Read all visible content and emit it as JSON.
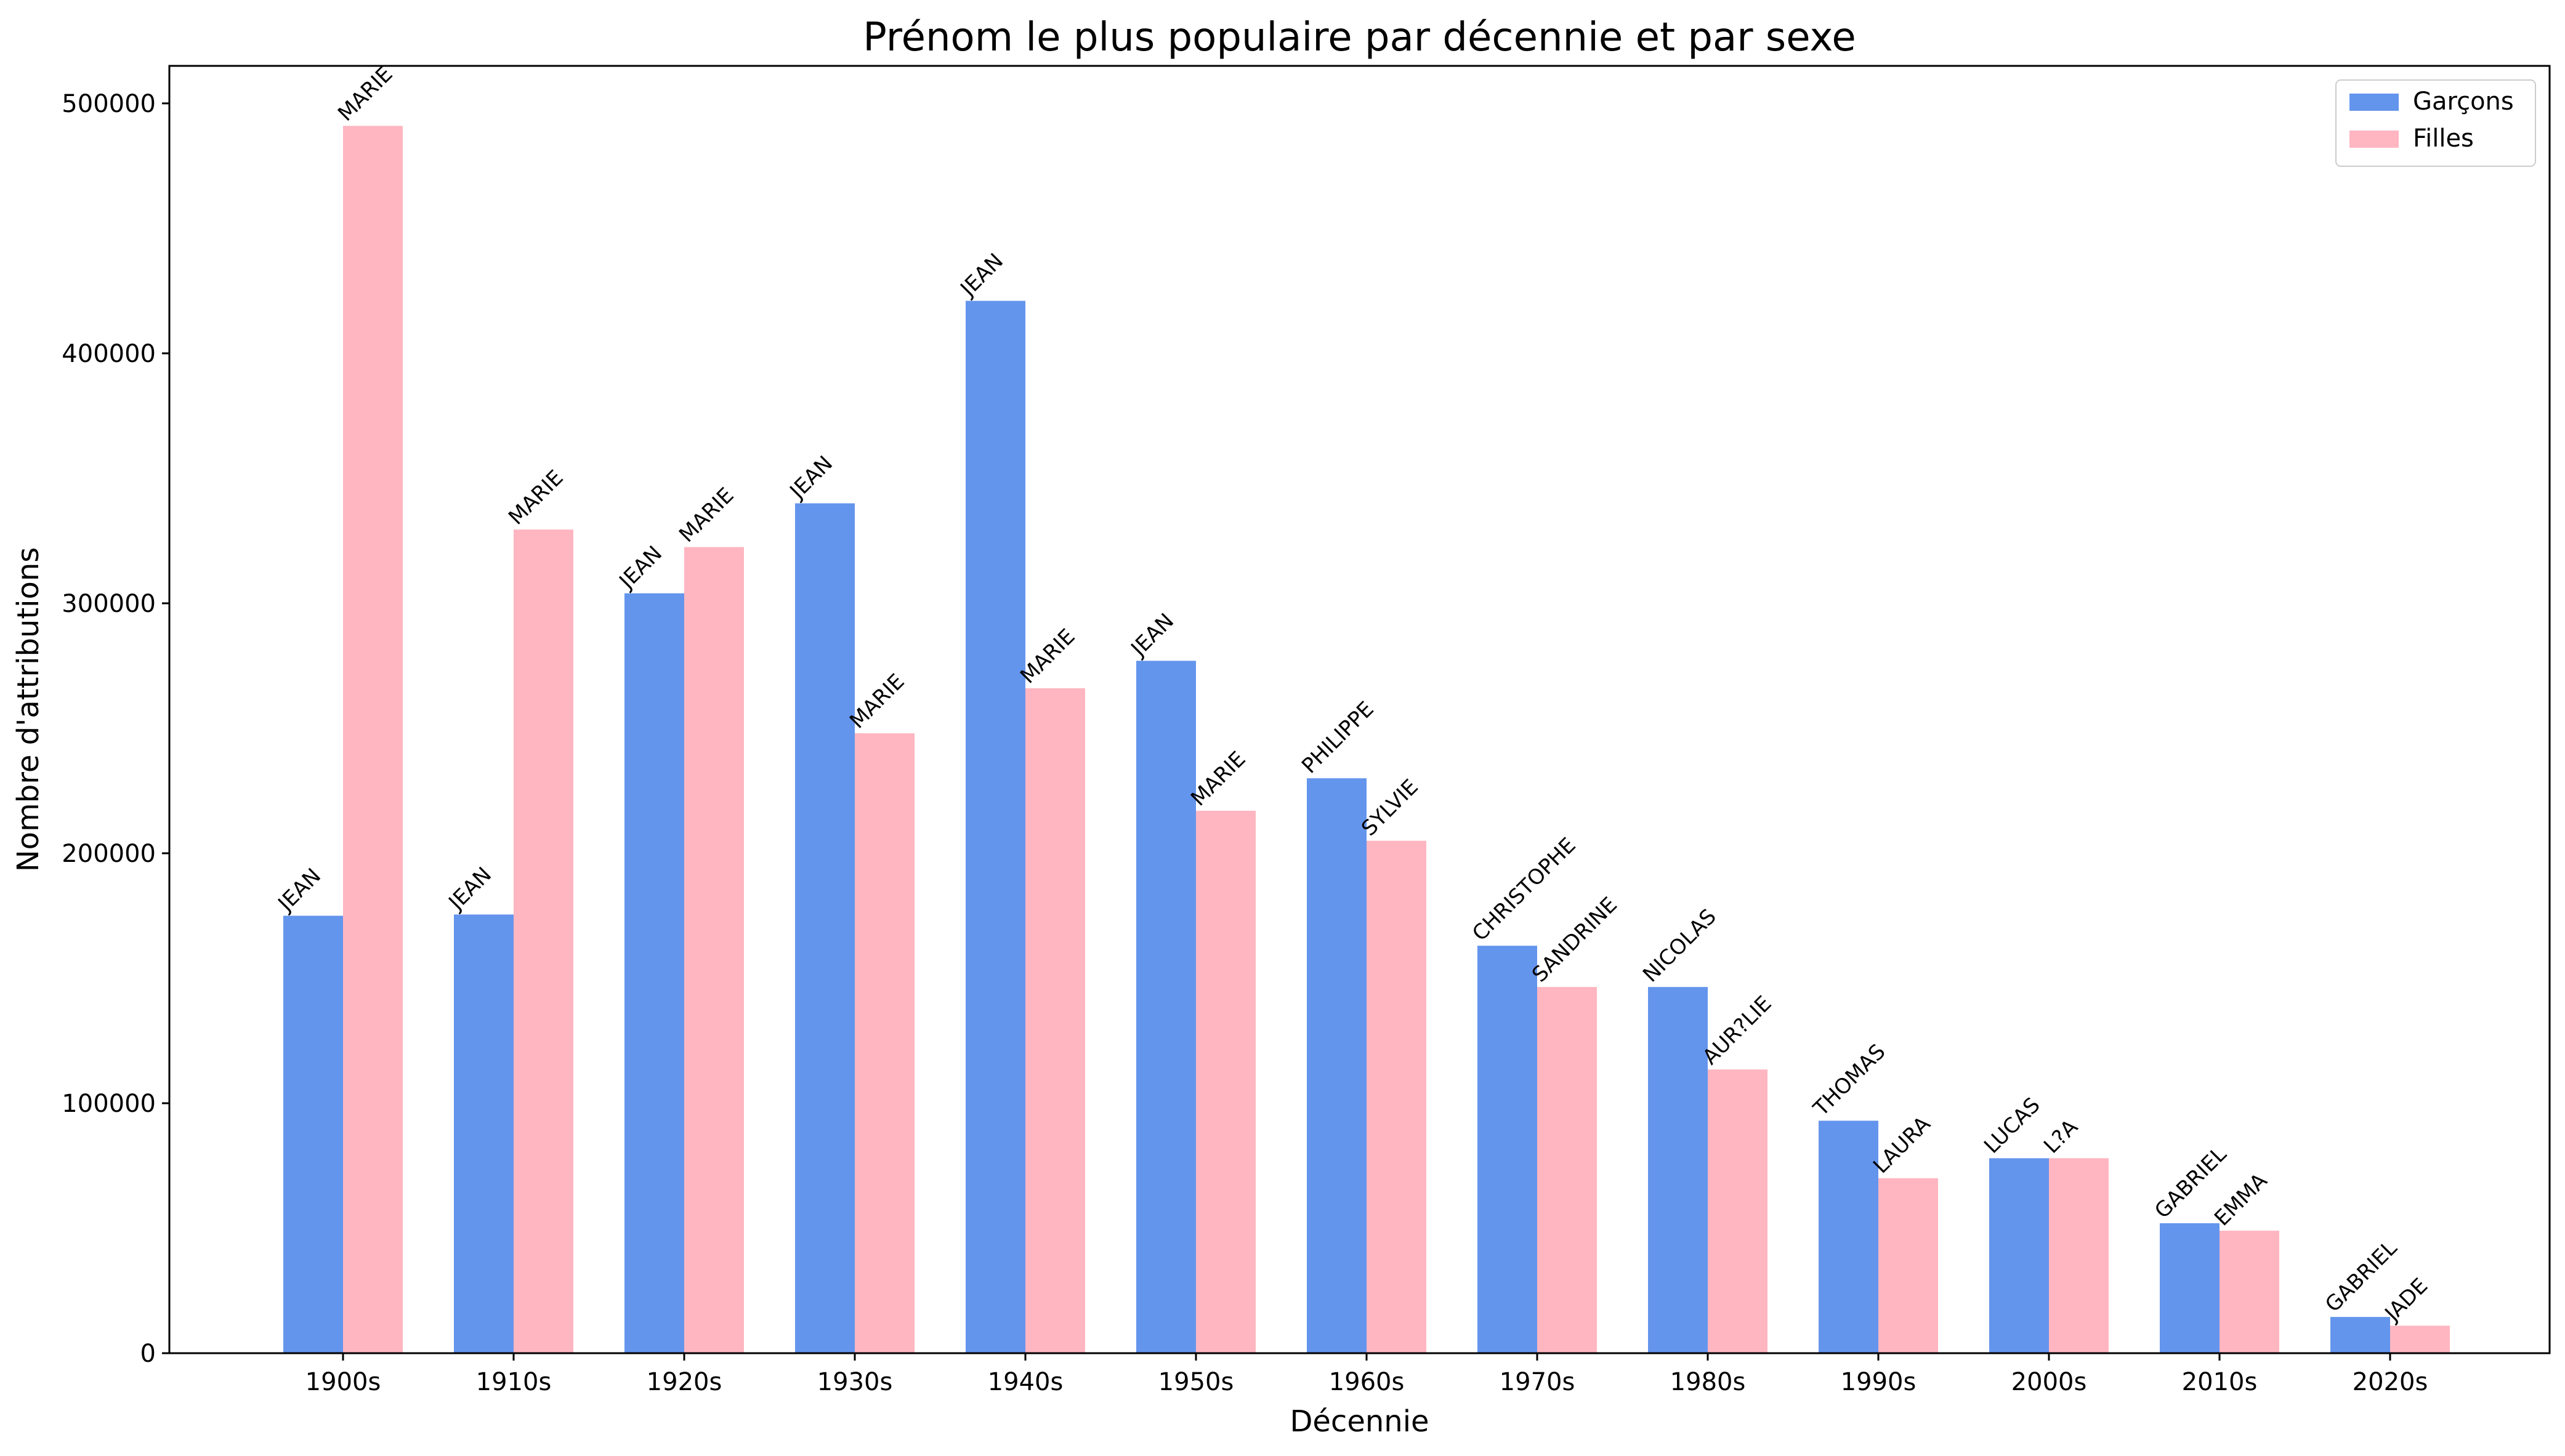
{
  "chart_data": {
    "type": "bar",
    "title": "Prénom le plus populaire par décennie et par sexe",
    "xlabel": "Décennie",
    "ylabel": "Nombre d'attributions",
    "ylim": [
      0,
      515000
    ],
    "yticks": [
      0,
      100000,
      200000,
      300000,
      400000,
      500000
    ],
    "ytick_labels": [
      "0",
      "100000",
      "200000",
      "300000",
      "400000",
      "500000"
    ],
    "grid": false,
    "legend_position": "top-right",
    "categories": [
      "1900s",
      "1910s",
      "1920s",
      "1930s",
      "1940s",
      "1950s",
      "1960s",
      "1970s",
      "1980s",
      "1990s",
      "2000s",
      "2010s",
      "2020s"
    ],
    "series": [
      {
        "name": "Garçons",
        "color": "#6495ED",
        "values": [
          175000,
          175500,
          304000,
          340000,
          421000,
          277000,
          230000,
          163000,
          146500,
          93000,
          78000,
          52000,
          14500
        ],
        "labels": [
          "JEAN",
          "JEAN",
          "JEAN",
          "JEAN",
          "JEAN",
          "JEAN",
          "PHILIPPE",
          "CHRISTOPHE",
          "NICOLAS",
          "THOMAS",
          "LUCAS",
          "GABRIEL",
          "GABRIEL"
        ]
      },
      {
        "name": "Filles",
        "color": "#FFB6C1",
        "values": [
          491000,
          329500,
          322500,
          248000,
          266000,
          217000,
          205000,
          146500,
          113500,
          70000,
          78000,
          49000,
          11000
        ],
        "labels": [
          "MARIE",
          "MARIE",
          "MARIE",
          "MARIE",
          "MARIE",
          "MARIE",
          "SYLVIE",
          "SANDRINE",
          "AUR?LIE",
          "LAURA",
          "L?A",
          "EMMA",
          "JADE"
        ]
      }
    ]
  }
}
